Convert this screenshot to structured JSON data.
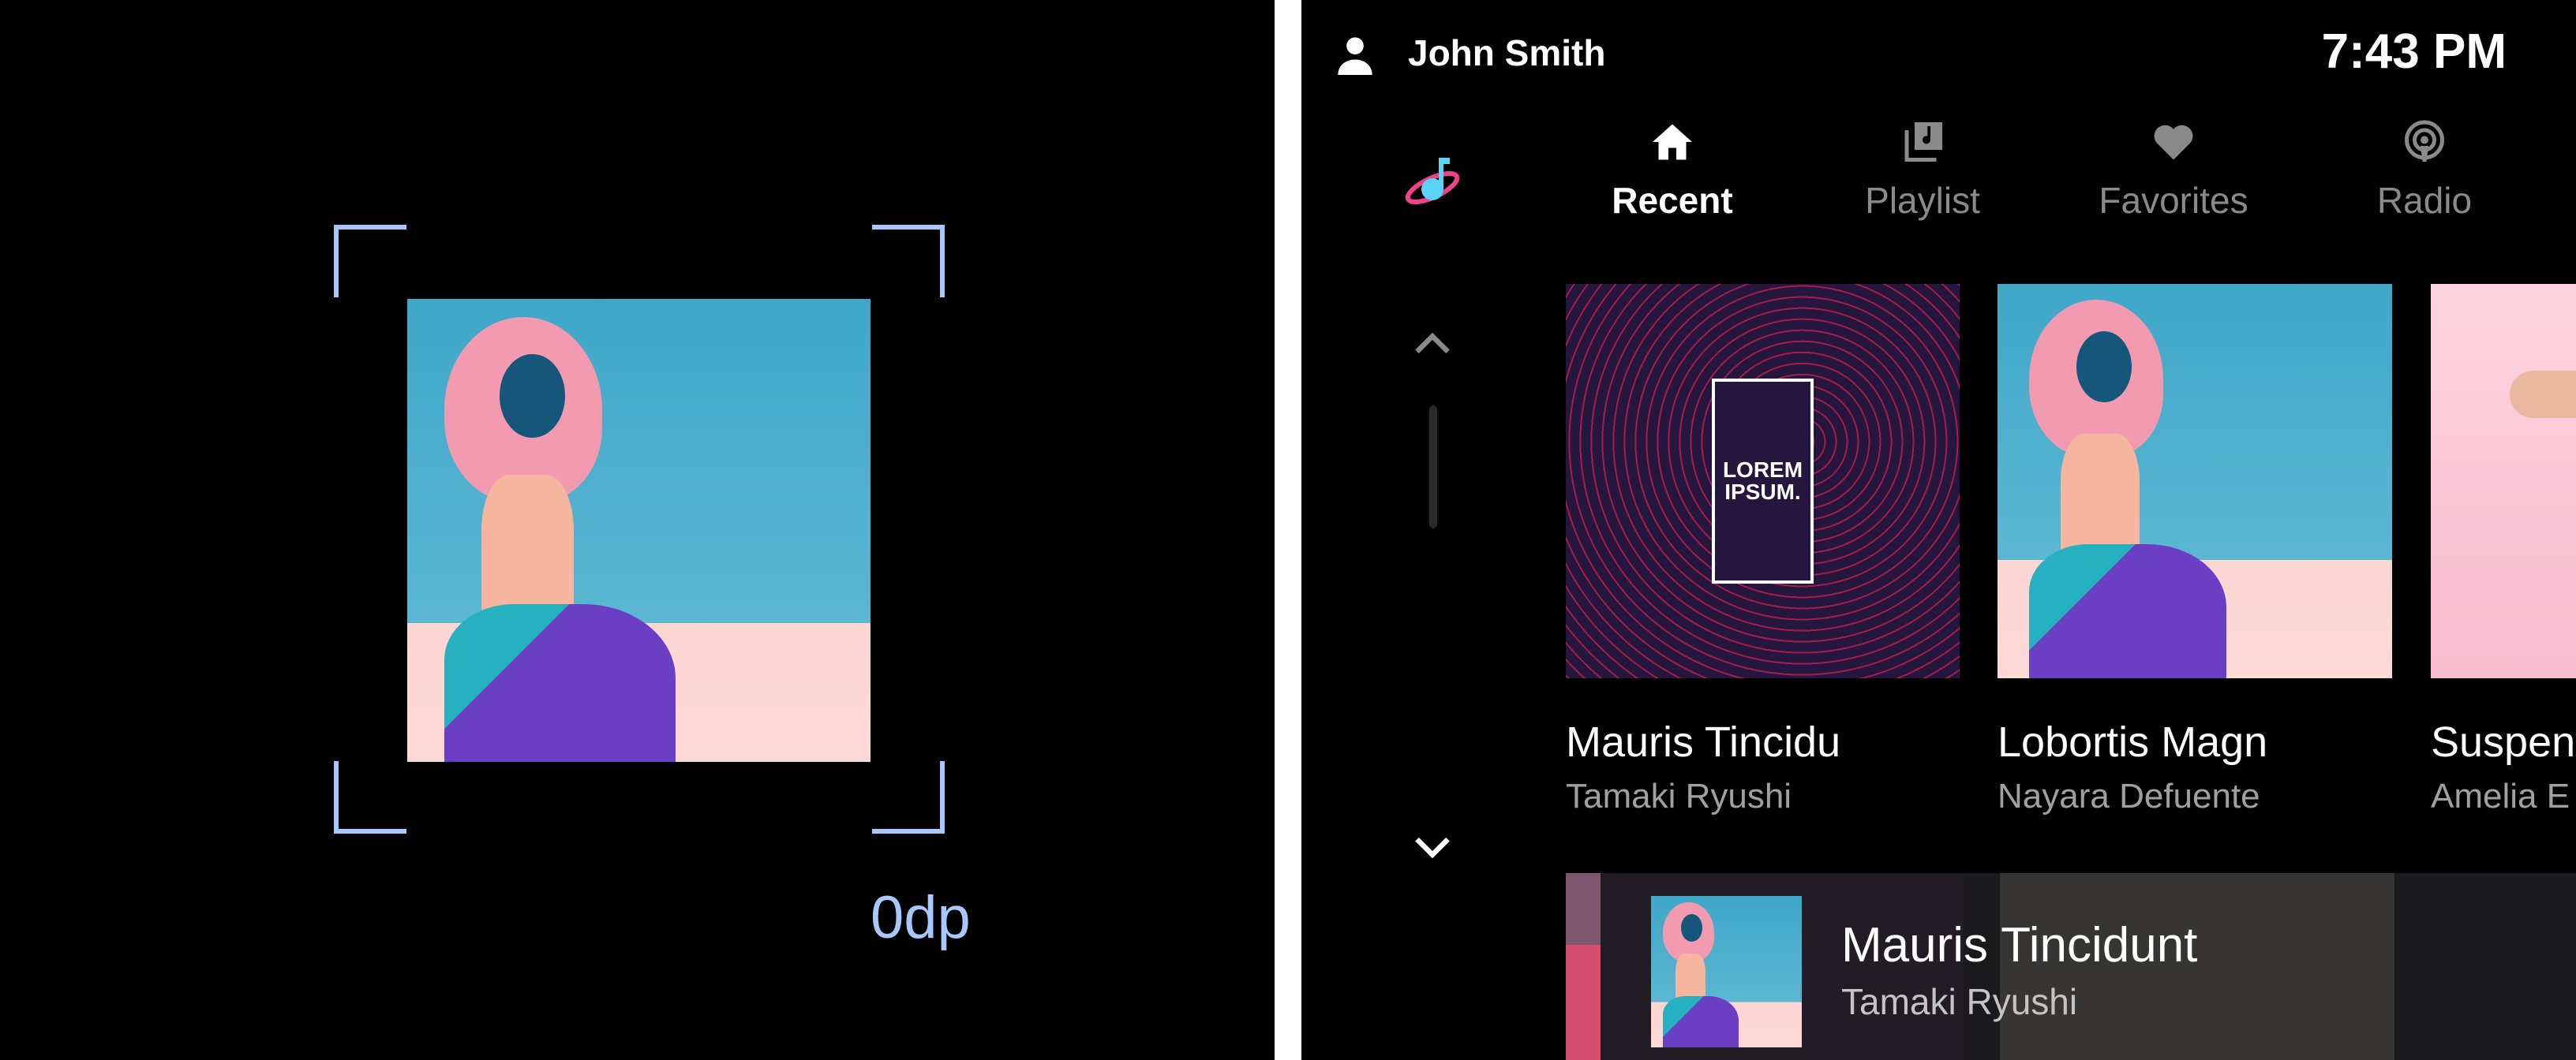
{
  "spec_panel": {
    "spacing_label": "0dp",
    "accent_color": "#a8c7fa"
  },
  "status_bar": {
    "user_name": "John Smith",
    "user_icon": "person-icon",
    "time": "7:43 PM"
  },
  "app": {
    "logo_icon": "music-planet-logo"
  },
  "tabs": [
    {
      "label": "Recent",
      "icon": "home-icon",
      "active": true
    },
    {
      "label": "Playlist",
      "icon": "library-music-icon",
      "active": false
    },
    {
      "label": "Favorites",
      "icon": "heart-icon",
      "active": false
    },
    {
      "label": "Radio",
      "icon": "podcast-icon",
      "active": false
    }
  ],
  "cards": [
    {
      "title": "Mauris Tincidu",
      "artist": "Tamaki Ryushi",
      "art_text": "LOREM IPSUM."
    },
    {
      "title": "Lobortis Magn",
      "artist": "Nayara Defuente"
    },
    {
      "title": "Suspen",
      "artist": "Amelia E"
    }
  ],
  "now_playing": {
    "title": "Mauris Tincidunt",
    "artist": "Tamaki Ryushi"
  }
}
